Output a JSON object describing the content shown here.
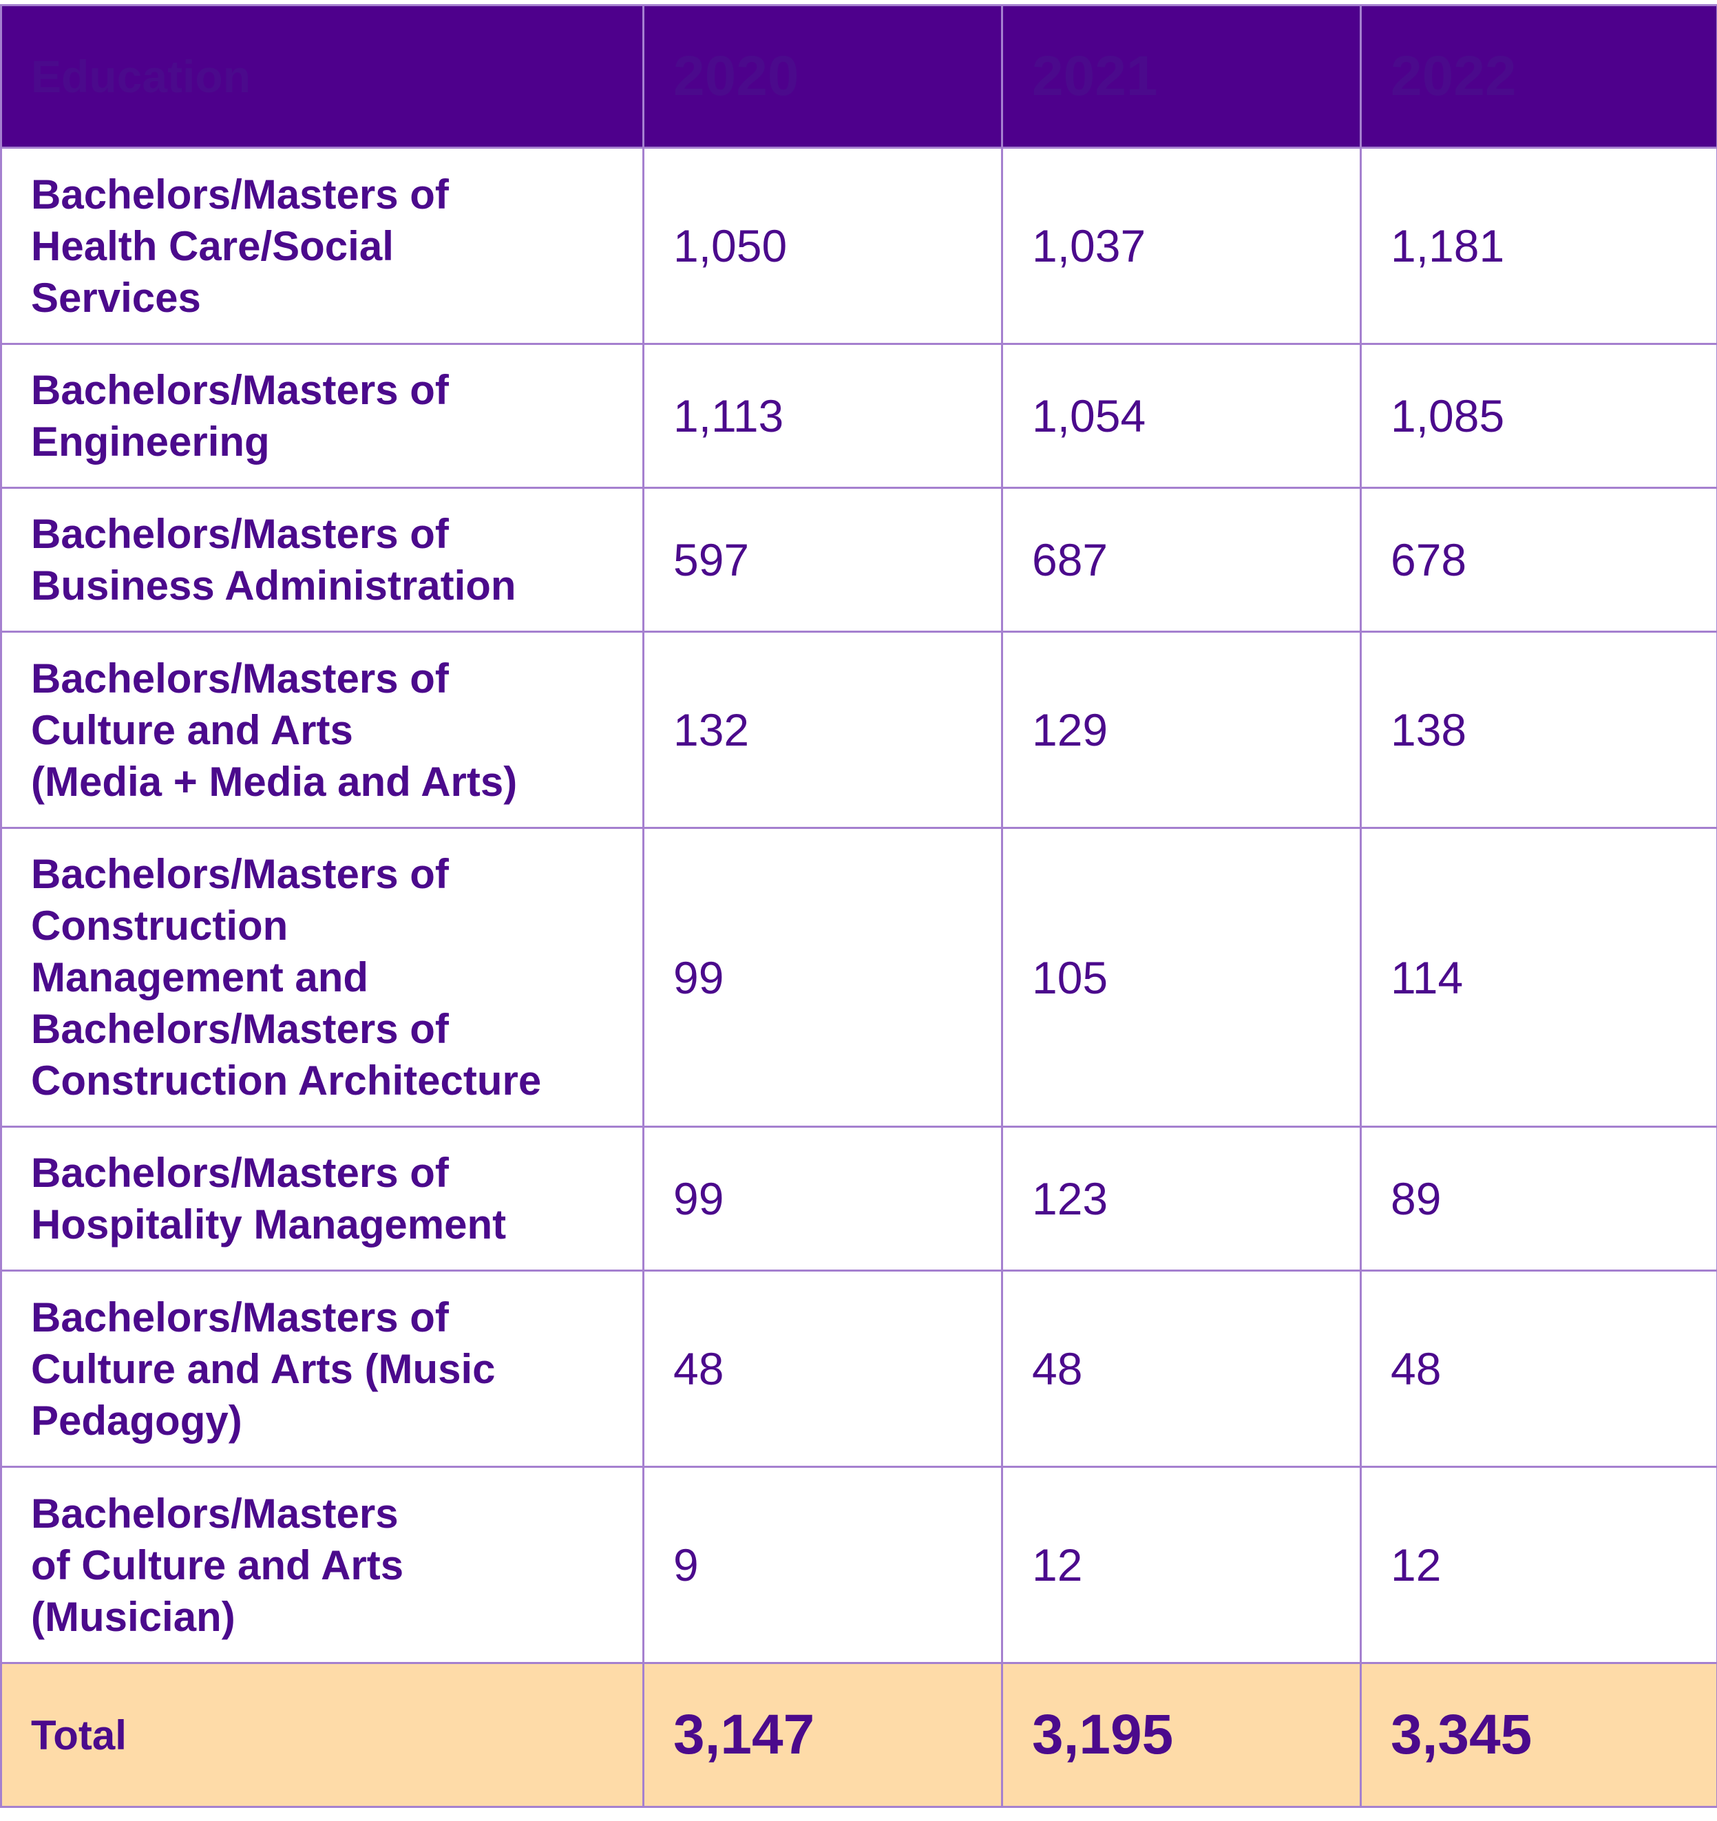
{
  "header": {
    "label": "Education",
    "years": [
      "2020",
      "2021",
      "2022"
    ]
  },
  "rows": [
    {
      "lines": [
        "Bachelors/Masters of",
        "Health Care/Social",
        "Services"
      ],
      "values": [
        "1,050",
        "1,037",
        "1,181"
      ]
    },
    {
      "lines": [
        "Bachelors/Masters of",
        "Engineering"
      ],
      "values": [
        "1,113",
        "1,054",
        "1,085"
      ]
    },
    {
      "lines": [
        "Bachelors/Masters of",
        "Business Administration"
      ],
      "values": [
        "597",
        "687",
        "678"
      ]
    },
    {
      "lines": [
        "Bachelors/Masters of",
        "Culture and Arts",
        "(Media + Media and Arts)"
      ],
      "values": [
        "132",
        "129",
        "138"
      ]
    },
    {
      "lines": [
        "Bachelors/Masters of",
        "Construction",
        "Management and",
        "Bachelors/Masters of",
        "Construction Architecture"
      ],
      "values": [
        "99",
        "105",
        "114"
      ]
    },
    {
      "lines": [
        "Bachelors/Masters of",
        "Hospitality Management"
      ],
      "values": [
        "99",
        "123",
        "89"
      ]
    },
    {
      "lines": [
        "Bachelors/Masters of",
        "Culture and Arts (Music",
        "Pedagogy)"
      ],
      "values": [
        "48",
        "48",
        "48"
      ]
    },
    {
      "lines": [
        "Bachelors/Masters",
        "of Culture and Arts",
        "(Musician)"
      ],
      "values": [
        "9",
        "12",
        "12"
      ]
    }
  ],
  "total": {
    "label": "Total",
    "values": [
      "3,147",
      "3,195",
      "3,345"
    ]
  },
  "colors": {
    "header_bg": "#4e008c",
    "text": "#4b0a8c",
    "border": "#a580cf",
    "total_bg": "#fedba8"
  }
}
